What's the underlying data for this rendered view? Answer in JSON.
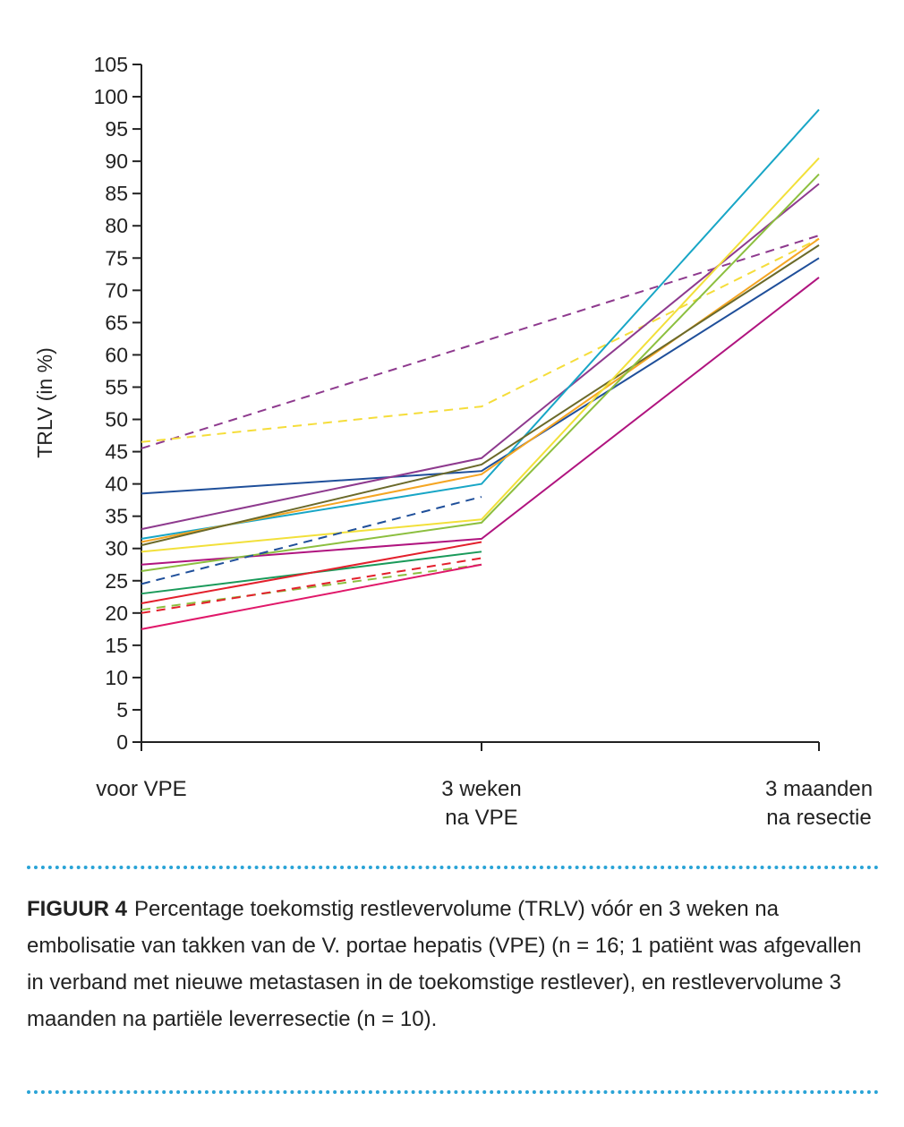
{
  "chart_data": {
    "type": "line",
    "ylabel": "TRLV (in %)",
    "ylim": [
      0,
      105
    ],
    "yticks": [
      0,
      5,
      10,
      15,
      20,
      25,
      30,
      35,
      40,
      45,
      50,
      55,
      60,
      65,
      70,
      75,
      80,
      85,
      90,
      95,
      100,
      105
    ],
    "categories": [
      "voor VPE",
      "3 weken na VPE",
      "3 maanden na resectie"
    ],
    "category_lines": [
      [
        "voor VPE"
      ],
      [
        "3 weken",
        "na VPE"
      ],
      [
        "3 maanden",
        "na resectie"
      ]
    ],
    "series": [
      {
        "color": "#8e3a8e",
        "dashed": true,
        "values": [
          45.5,
          62,
          78.5
        ]
      },
      {
        "color": "#f5dd3a",
        "dashed": true,
        "values": [
          46.5,
          52,
          78
        ]
      },
      {
        "color": "#1f4f9a",
        "dashed": false,
        "values": [
          38.5,
          42,
          75
        ]
      },
      {
        "color": "#8e3a8e",
        "dashed": false,
        "values": [
          33,
          44,
          86.5
        ]
      },
      {
        "color": "#18a6c6",
        "dashed": false,
        "values": [
          31.5,
          40,
          98
        ]
      },
      {
        "color": "#f5a623",
        "dashed": false,
        "values": [
          31,
          41.5,
          78
        ]
      },
      {
        "color": "#6b6a2a",
        "dashed": false,
        "values": [
          30.5,
          43,
          77
        ]
      },
      {
        "color": "#f2e03a",
        "dashed": false,
        "values": [
          29.5,
          34.5,
          90.5
        ]
      },
      {
        "color": "#b0147f",
        "dashed": false,
        "values": [
          27.5,
          31.5,
          72
        ]
      },
      {
        "color": "#8cbf3f",
        "dashed": false,
        "values": [
          26.5,
          34,
          88
        ]
      },
      {
        "color": "#1f4f9a",
        "dashed": true,
        "values": [
          24.5,
          38,
          null
        ]
      },
      {
        "color": "#1a9a5a",
        "dashed": false,
        "values": [
          23,
          29.5,
          null
        ]
      },
      {
        "color": "#e3202c",
        "dashed": false,
        "values": [
          21.5,
          31,
          null
        ]
      },
      {
        "color": "#8cbf3f",
        "dashed": true,
        "values": [
          20.5,
          27.5,
          null
        ]
      },
      {
        "color": "#e3202c",
        "dashed": true,
        "values": [
          20,
          28.5,
          null
        ]
      },
      {
        "color": "#e0186a",
        "dashed": false,
        "values": [
          17.5,
          27.5,
          null
        ]
      }
    ]
  },
  "caption": {
    "label": "FIGUUR 4",
    "text": "Percentage toekomstig restlevervolume (TRLV) vóór en 3 weken na embolisatie van takken van de V. portae hepatis (VPE) (n = 16; 1 patiënt was afgevallen in verband met nieuwe metastasen in de toekomstige restlever), en restlevervolume 3 maanden na partiële leverresectie (n = 10)."
  }
}
